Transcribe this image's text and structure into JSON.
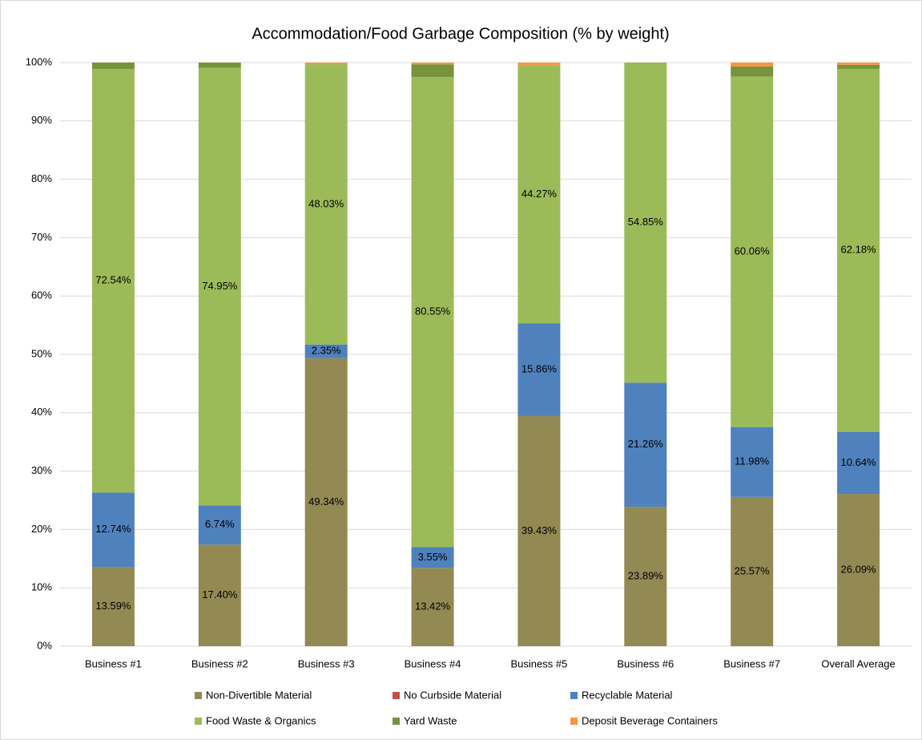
{
  "chart_data": {
    "type": "stacked_bar",
    "title": "Accommodation/Food Garbage Composition (% by weight)",
    "categories": [
      "Business #1",
      "Business #2",
      "Business #3",
      "Business #4",
      "Business #5",
      "Business #6",
      "Business #7",
      "Overall Average"
    ],
    "series": [
      {
        "name": "Non-Divertible Material",
        "color": "#938953",
        "values": [
          13.59,
          17.4,
          49.34,
          13.42,
          39.43,
          23.89,
          25.57,
          26.09
        ],
        "value_labels": [
          "13.59%",
          "17.40%",
          "49.34%",
          "13.42%",
          "39.43%",
          "23.89%",
          "25.57%",
          "26.09%"
        ]
      },
      {
        "name": "No Curbside Material",
        "color": "#c0504d",
        "values": [
          0,
          0,
          0,
          0,
          0,
          0,
          0,
          0
        ]
      },
      {
        "name": "Recyclable Material",
        "color": "#4f81bd",
        "values": [
          12.74,
          6.74,
          2.35,
          3.55,
          15.86,
          21.26,
          11.98,
          10.64
        ],
        "value_labels": [
          "12.74%",
          "6.74%",
          "2.35%",
          "3.55%",
          "15.86%",
          "21.26%",
          "11.98%",
          "10.64%"
        ]
      },
      {
        "name": "Food Waste & Organics",
        "color": "#9bbb59",
        "values": [
          72.54,
          74.95,
          48.03,
          80.55,
          44.27,
          54.85,
          60.06,
          62.18
        ],
        "value_labels": [
          "72.54%",
          "74.95%",
          "48.03%",
          "80.55%",
          "44.27%",
          "54.85%",
          "60.06%",
          "62.18%"
        ]
      },
      {
        "name": "Yard Waste",
        "color": "#77933c",
        "values": [
          1.13,
          0.91,
          0,
          2.18,
          0,
          0,
          1.7,
          0.7
        ]
      },
      {
        "name": "Deposit Beverage Containers",
        "color": "#f79646",
        "values": [
          0,
          0,
          0.28,
          0.3,
          0.44,
          0,
          0.69,
          0.39
        ]
      }
    ],
    "ylim": [
      0,
      100
    ],
    "yticks": [
      {
        "value": 0,
        "label": "0%"
      },
      {
        "value": 10,
        "label": "10%"
      },
      {
        "value": 20,
        "label": "20%"
      },
      {
        "value": 30,
        "label": "30%"
      },
      {
        "value": 40,
        "label": "40%"
      },
      {
        "value": 50,
        "label": "50%"
      },
      {
        "value": 60,
        "label": "60%"
      },
      {
        "value": 70,
        "label": "70%"
      },
      {
        "value": 80,
        "label": "80%"
      },
      {
        "value": 90,
        "label": "90%"
      },
      {
        "value": 100,
        "label": "100%"
      }
    ],
    "grid": true
  }
}
